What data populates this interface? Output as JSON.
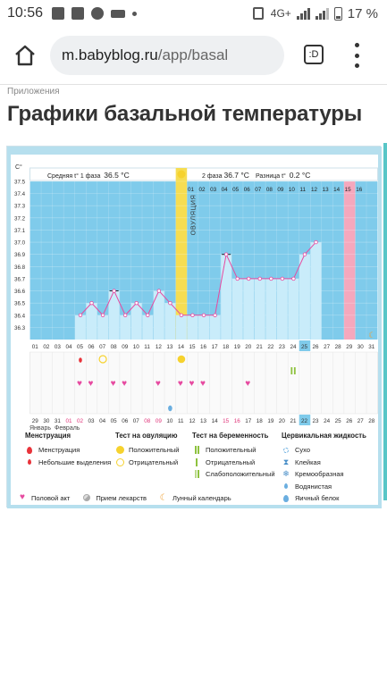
{
  "status": {
    "time": "10:56",
    "network": "4G+",
    "battery": "17 %"
  },
  "browser": {
    "url_host": "m.babyblog.ru",
    "url_path": "/app/basal",
    "tabs_label": ":D"
  },
  "breadcrumb": "Приложения",
  "title": "Графики базальной температуры",
  "chart_data": {
    "type": "line",
    "ylabel": "C°",
    "ylim": [
      36.2,
      37.5
    ],
    "yticks": [
      "37.5",
      "37.4",
      "37.3",
      "37.2",
      "37.1",
      "37.0",
      "36.9",
      "36.8",
      "36.7",
      "36.6",
      "36.5",
      "36.4",
      "36.3"
    ],
    "phase1_label": "Средняя t° 1 фаза",
    "phase1_value": "36.5 °C",
    "phase2_label": "2 фаза",
    "phase2_value": "36.7 °C",
    "diff_label": "Разница t°",
    "diff_value": "0.2 °C",
    "ovulation_label": "ОВУЛЯЦИЯ",
    "cycle_days": [
      "01",
      "02",
      "03",
      "04",
      "05",
      "06",
      "07",
      "08",
      "09",
      "10",
      "11",
      "12",
      "13",
      "14",
      "15",
      "16"
    ],
    "days": [
      "01",
      "02",
      "03",
      "04",
      "05",
      "06",
      "07",
      "08",
      "09",
      "10",
      "11",
      "12",
      "13",
      "14",
      "15",
      "16",
      "17",
      "18",
      "19",
      "20",
      "21",
      "22",
      "23",
      "24",
      "25",
      "26",
      "27",
      "28",
      "29",
      "30",
      "31"
    ],
    "dates": [
      "29",
      "30",
      "31",
      "01",
      "02",
      "03",
      "04",
      "05",
      "06",
      "07",
      "08",
      "09",
      "10",
      "11",
      "12",
      "13",
      "14",
      "15",
      "16",
      "17",
      "18",
      "19",
      "20",
      "21",
      "22",
      "23",
      "24",
      "25",
      "26",
      "27",
      "28"
    ],
    "month_prev": "Январь",
    "month_next": "Февраль",
    "temps": [
      {
        "day": 5,
        "value": 36.4
      },
      {
        "day": 6,
        "value": 36.5
      },
      {
        "day": 7,
        "value": 36.4
      },
      {
        "day": 8,
        "value": 36.6
      },
      {
        "day": 9,
        "value": 36.4
      },
      {
        "day": 10,
        "value": 36.5
      },
      {
        "day": 11,
        "value": 36.4
      },
      {
        "day": 12,
        "value": 36.6
      },
      {
        "day": 13,
        "value": 36.5
      },
      {
        "day": 14,
        "value": 36.4
      },
      {
        "day": 15,
        "value": 36.4
      },
      {
        "day": 16,
        "value": 36.4
      },
      {
        "day": 17,
        "value": 36.4
      },
      {
        "day": 18,
        "value": 36.9
      },
      {
        "day": 19,
        "value": 36.7
      },
      {
        "day": 20,
        "value": 36.7
      },
      {
        "day": 21,
        "value": 36.7
      },
      {
        "day": 22,
        "value": 36.7
      },
      {
        "day": 23,
        "value": 36.7
      },
      {
        "day": 24,
        "value": 36.7
      },
      {
        "day": 25,
        "value": 36.9
      },
      {
        "day": 26,
        "value": 37.0
      }
    ]
  },
  "legend": {
    "menstruation_title": "Менструация",
    "menstruation": "Менструация",
    "spotting": "Небольшие выделения",
    "ovulation_test_title": "Тест на овуляцию",
    "ov_positive": "Положительный",
    "ov_negative": "Отрицательный",
    "pregnancy_test_title": "Тест на беременность",
    "pr_positive": "Положительный",
    "pr_negative": "Отрицательный",
    "pr_weak": "Слабоположительный",
    "mucus_title": "Цервикальная жидкость",
    "mucus_dry": "Сухо",
    "mucus_sticky": "Клейкая",
    "mucus_creamy": "Кремообразная",
    "mucus_watery": "Водянистая",
    "mucus_eggwhite": "Яичный белок",
    "intercourse": "Половой акт",
    "medication": "Прием лекарств",
    "lunar": "Лунный календарь"
  },
  "colors": {
    "chart_bg": "#7fcbeb",
    "bar": "#c9ecfa",
    "line": "#e64aa0",
    "ovulation": "#f6dd52",
    "period_col": "#f5a8bd",
    "accent": "#58c6c7"
  }
}
